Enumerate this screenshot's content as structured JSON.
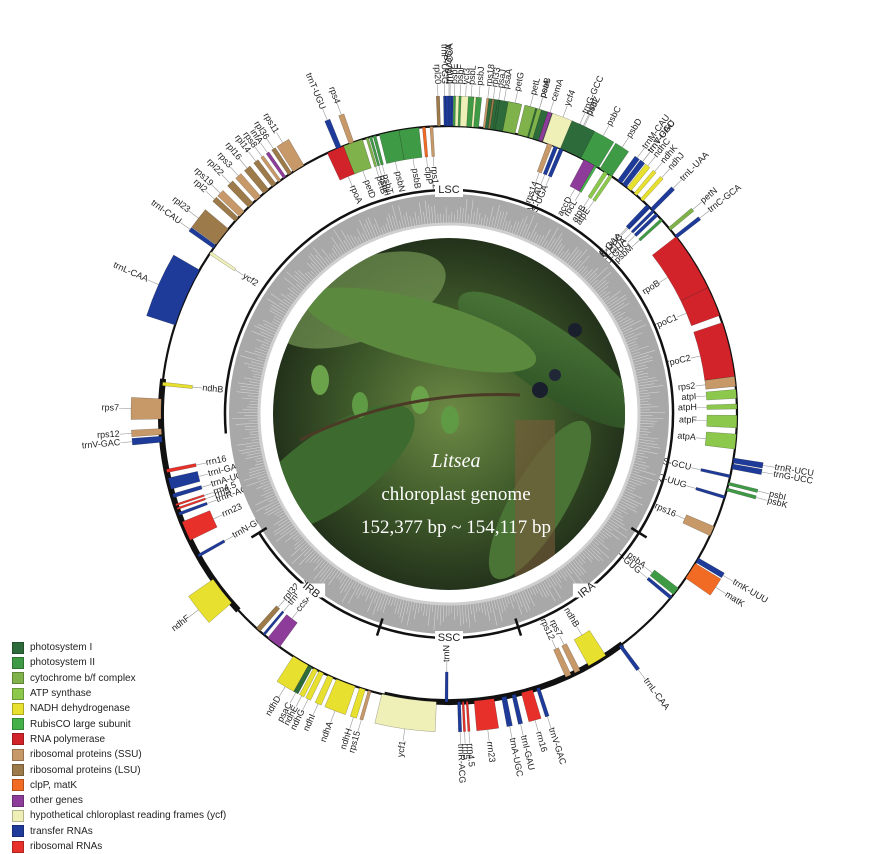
{
  "center": {
    "genus": "Litsea",
    "subtitle": "chloroplast genome",
    "size_range": "152,377 bp ~ 154,117 bp"
  },
  "regions": {
    "lsc": "LSC",
    "ssc": "SSC",
    "ira": "IRA",
    "irb": "IRB"
  },
  "colors": {
    "photosystem_I": "#2e6b3a",
    "photosystem_II": "#3f9a45",
    "cytochrome": "#7fb24a",
    "atp": "#8cc84b",
    "ndh": "#e8e02e",
    "rubisco": "#44b049",
    "rna_pol": "#d2232a",
    "ssu": "#c89968",
    "lsu": "#9c7a4a",
    "clp": "#f26b24",
    "other": "#8d3c99",
    "ycf": "#efefb8",
    "trna": "#1f3b9a",
    "rrna": "#e8302a"
  },
  "legend": [
    {
      "label": "photosystem I",
      "color": "#2e6b3a"
    },
    {
      "label": "photosystem II",
      "color": "#3f9a45"
    },
    {
      "label": "cytochrome b/f complex",
      "color": "#7fb24a"
    },
    {
      "label": "ATP synthase",
      "color": "#8cc84b"
    },
    {
      "label": "NADH dehydrogenase",
      "color": "#e8e02e"
    },
    {
      "label": "RubisCO large subunit",
      "color": "#44b049"
    },
    {
      "label": "RNA polymerase",
      "color": "#d2232a"
    },
    {
      "label": "ribosomal proteins (SSU)",
      "color": "#c89968"
    },
    {
      "label": "ribosomal proteins (LSU)",
      "color": "#9c7a4a"
    },
    {
      "label": "clpP, matK",
      "color": "#f26b24"
    },
    {
      "label": "other genes",
      "color": "#8d3c99"
    },
    {
      "label": "hypothetical chloroplast reading frames (ycf)",
      "color": "#efefb8"
    },
    {
      "label": "transfer RNAs",
      "color": "#1f3b9a"
    },
    {
      "label": "ribosomal RNAs",
      "color": "#e8302a"
    }
  ],
  "genes": [
    {
      "name": "trnS-GGA",
      "cat": "trna"
    },
    {
      "name": "ycf3",
      "cat": "ycf"
    },
    {
      "name": "psaA",
      "cat": "photosystem_I"
    },
    {
      "name": "psaB",
      "cat": "photosystem_I"
    },
    {
      "name": "rps14",
      "cat": "ssu"
    },
    {
      "name": "trnfM-CAU",
      "cat": "trna"
    },
    {
      "name": "trnS-UGA",
      "cat": "trna"
    },
    {
      "name": "trnG-GCC",
      "cat": "trna"
    },
    {
      "name": "psbZ",
      "cat": "photosystem_II"
    },
    {
      "name": "psbC",
      "cat": "photosystem_II"
    },
    {
      "name": "psbD",
      "cat": "photosystem_II"
    },
    {
      "name": "trnT-GGU",
      "cat": "trna"
    },
    {
      "name": "trnE-UUC",
      "cat": "trna"
    },
    {
      "name": "trnY-GUA",
      "cat": "trna"
    },
    {
      "name": "trnD-GUC",
      "cat": "trna"
    },
    {
      "name": "psbM",
      "cat": "photosystem_II"
    },
    {
      "name": "petN",
      "cat": "cytochrome"
    },
    {
      "name": "trnC-GCA",
      "cat": "trna"
    },
    {
      "name": "rpoB",
      "cat": "rna_pol"
    },
    {
      "name": "rpoC1",
      "cat": "rna_pol"
    },
    {
      "name": "rpoC2",
      "cat": "rna_pol"
    },
    {
      "name": "rps2",
      "cat": "ssu"
    },
    {
      "name": "atpI",
      "cat": "atp"
    },
    {
      "name": "atpH",
      "cat": "atp"
    },
    {
      "name": "atpF",
      "cat": "atp"
    },
    {
      "name": "atpA",
      "cat": "atp"
    },
    {
      "name": "trnR-UCU",
      "cat": "trna"
    },
    {
      "name": "trnG-UCC",
      "cat": "trna"
    },
    {
      "name": "trnS-GCU",
      "cat": "trna"
    },
    {
      "name": "psbI",
      "cat": "photosystem_II"
    },
    {
      "name": "psbK",
      "cat": "photosystem_II"
    },
    {
      "name": "trnQ-UUG",
      "cat": "trna"
    },
    {
      "name": "rps16",
      "cat": "ssu"
    },
    {
      "name": "trnK-UUU",
      "cat": "trna"
    },
    {
      "name": "matK",
      "cat": "clp"
    },
    {
      "name": "psbA",
      "cat": "photosystem_II"
    },
    {
      "name": "trnH-GUG",
      "cat": "trna"
    },
    {
      "name": "trnL-CAA",
      "cat": "trna"
    },
    {
      "name": "ndhB",
      "cat": "ndh"
    },
    {
      "name": "rps7",
      "cat": "ssu"
    },
    {
      "name": "rps12",
      "cat": "ssu"
    },
    {
      "name": "trnV-GAC",
      "cat": "trna"
    },
    {
      "name": "rrn16",
      "cat": "rrna"
    },
    {
      "name": "trnI-GAU",
      "cat": "trna"
    },
    {
      "name": "trnA-UGC",
      "cat": "trna"
    },
    {
      "name": "rrn23",
      "cat": "rrna"
    },
    {
      "name": "rrn4.5",
      "cat": "rrna"
    },
    {
      "name": "rrn5",
      "cat": "rrna"
    },
    {
      "name": "trnR-ACG",
      "cat": "trna"
    },
    {
      "name": "trnN-GUU",
      "cat": "trna"
    },
    {
      "name": "ycf1",
      "cat": "ycf"
    },
    {
      "name": "rps15",
      "cat": "ssu"
    },
    {
      "name": "ndhH",
      "cat": "ndh"
    },
    {
      "name": "ndhA",
      "cat": "ndh"
    },
    {
      "name": "ndhI",
      "cat": "ndh"
    },
    {
      "name": "ndhG",
      "cat": "ndh"
    },
    {
      "name": "ndhE",
      "cat": "ndh"
    },
    {
      "name": "psaC",
      "cat": "photosystem_I"
    },
    {
      "name": "ndhD",
      "cat": "ndh"
    },
    {
      "name": "ccsA",
      "cat": "other"
    },
    {
      "name": "trnL-UAG",
      "cat": "trna"
    },
    {
      "name": "rpl32",
      "cat": "lsu"
    },
    {
      "name": "ndhF",
      "cat": "ndh"
    },
    {
      "name": "trnN-GUU",
      "cat": "trna"
    },
    {
      "name": "rrn23",
      "cat": "rrna"
    },
    {
      "name": "trnR-ACG",
      "cat": "trna"
    },
    {
      "name": "rrn5",
      "cat": "rrna"
    },
    {
      "name": "rrn4.5",
      "cat": "rrna"
    },
    {
      "name": "trnA-UGC",
      "cat": "trna"
    },
    {
      "name": "trnI-GAU",
      "cat": "trna"
    },
    {
      "name": "rrn16",
      "cat": "rrna"
    },
    {
      "name": "trnV-GAC",
      "cat": "trna"
    },
    {
      "name": "rps12",
      "cat": "ssu"
    },
    {
      "name": "rps7",
      "cat": "ssu"
    },
    {
      "name": "ndhB",
      "cat": "ndh"
    },
    {
      "name": "trnL-CAA",
      "cat": "trna"
    },
    {
      "name": "ycf2",
      "cat": "ycf"
    },
    {
      "name": "trnI-CAU",
      "cat": "trna"
    },
    {
      "name": "rpl23",
      "cat": "lsu"
    },
    {
      "name": "rpl2",
      "cat": "lsu"
    },
    {
      "name": "rps19",
      "cat": "ssu"
    },
    {
      "name": "rpl22",
      "cat": "lsu"
    },
    {
      "name": "rps3",
      "cat": "ssu"
    },
    {
      "name": "rpl16",
      "cat": "lsu"
    },
    {
      "name": "rpl14",
      "cat": "lsu"
    },
    {
      "name": "rps8",
      "cat": "ssu"
    },
    {
      "name": "infA",
      "cat": "other"
    },
    {
      "name": "rpl36",
      "cat": "lsu"
    },
    {
      "name": "rps11",
      "cat": "ssu"
    },
    {
      "name": "rpoA",
      "cat": "rna_pol"
    },
    {
      "name": "petD",
      "cat": "cytochrome"
    },
    {
      "name": "petB",
      "cat": "cytochrome"
    },
    {
      "name": "psbH",
      "cat": "photosystem_II"
    },
    {
      "name": "psbT",
      "cat": "photosystem_II"
    },
    {
      "name": "psbN",
      "cat": "photosystem_II"
    },
    {
      "name": "psbB",
      "cat": "photosystem_II"
    },
    {
      "name": "clpP",
      "cat": "clp"
    },
    {
      "name": "rps12",
      "cat": "ssu"
    },
    {
      "name": "rpl20",
      "cat": "lsu"
    },
    {
      "name": "trnP-UGG",
      "cat": "trna"
    },
    {
      "name": "trnW-CCA",
      "cat": "trna"
    },
    {
      "name": "psbE",
      "cat": "photosystem_II"
    },
    {
      "name": "psbF",
      "cat": "photosystem_II"
    },
    {
      "name": "psbL",
      "cat": "photosystem_II"
    },
    {
      "name": "psbJ",
      "cat": "photosystem_II"
    },
    {
      "name": "rps18",
      "cat": "ssu"
    },
    {
      "name": "rpl33",
      "cat": "lsu"
    },
    {
      "name": "psaJ",
      "cat": "photosystem_I"
    },
    {
      "name": "petG",
      "cat": "cytochrome"
    },
    {
      "name": "petL",
      "cat": "cytochrome"
    },
    {
      "name": "petA",
      "cat": "cytochrome"
    },
    {
      "name": "cemA",
      "cat": "other"
    },
    {
      "name": "ycf4",
      "cat": "ycf"
    },
    {
      "name": "psaI",
      "cat": "photosystem_I"
    },
    {
      "name": "accD",
      "cat": "other"
    },
    {
      "name": "rbcL",
      "cat": "rubisco"
    },
    {
      "name": "atpB",
      "cat": "atp"
    },
    {
      "name": "atpE",
      "cat": "atp"
    },
    {
      "name": "trnM-CAU",
      "cat": "trna"
    },
    {
      "name": "trnV-UAC",
      "cat": "trna"
    },
    {
      "name": "ndhC",
      "cat": "ndh"
    },
    {
      "name": "ndhK",
      "cat": "ndh"
    },
    {
      "name": "ndhJ",
      "cat": "ndh"
    },
    {
      "name": "trnF-GAA",
      "cat": "trna"
    },
    {
      "name": "trnL-UAA",
      "cat": "trna"
    },
    {
      "name": "trnT-UGU",
      "cat": "trna"
    },
    {
      "name": "rps4",
      "cat": "ssu"
    }
  ]
}
